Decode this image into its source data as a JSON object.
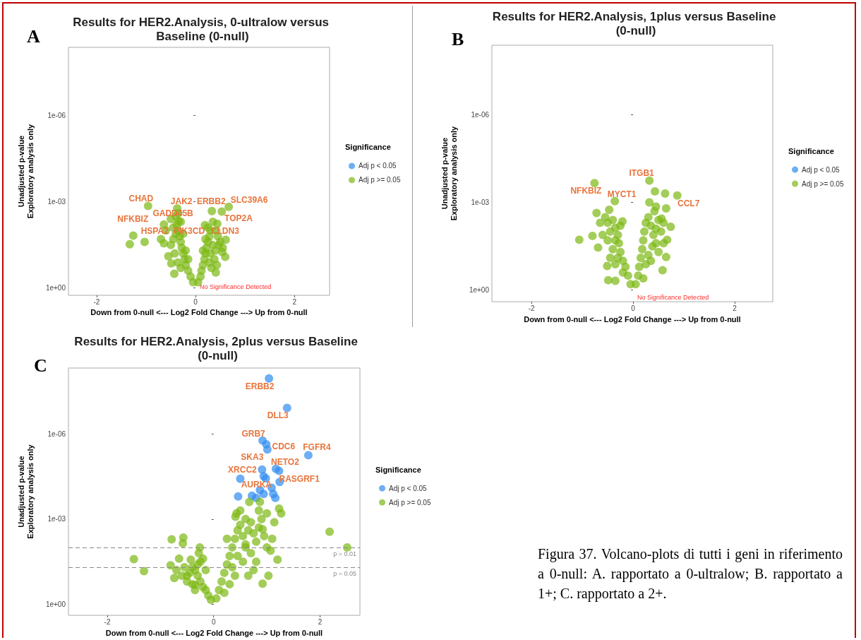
{
  "chart_data": [
    {
      "type": "scatter",
      "title": "Results for HER2.Analysis, 0-ultralow versus Baseline (0-null)",
      "xlabel": "Down from 0-null <--- Log2 Fold Change ---> Up from 0-null",
      "ylabel": "Unadjusted p-value\nExploratory analysis only",
      "legend_title": "Significance",
      "legend": "right",
      "marker": "circle",
      "grid": false,
      "log": "y",
      "xlim": [
        -2.57,
        2.71
      ],
      "xticks": [
        -2,
        0,
        2
      ],
      "ylim": [
        1.8,
        4.2e-09
      ],
      "yticks": [
        {
          "value": 1,
          "label": "1e+00"
        },
        {
          "value": 0.001,
          "label": "1e-03"
        },
        {
          "value": 1e-06,
          "label": "1e-06"
        }
      ],
      "series": [
        {
          "name": "Adj p < 0.05",
          "color": "#2f8cf0"
        },
        {
          "name": "Adj p >= 0.05",
          "color": "#7cb813",
          "x": [
            -0.96,
            -0.37,
            -0.34,
            0.33,
            0.53,
            0.67,
            0.44,
            0.19,
            0.61,
            -1.26,
            -1.33,
            -1.03,
            -0.64,
            -0.64,
            -0.49,
            -0.43,
            0.47,
            0.54,
            0.6,
            0.43,
            0.41,
            -0.05,
            -0.1,
            -0.15,
            -0.2,
            -0.22,
            -0.25,
            -0.28,
            -0.3,
            -0.32,
            -0.35,
            -0.38,
            -0.3,
            -0.4,
            -0.45,
            -0.5,
            -0.42,
            -0.36,
            -0.3,
            -0.55,
            -0.6,
            -0.5,
            -0.4,
            -0.35,
            -0.7,
            -0.2,
            -0.15,
            -0.25,
            -0.45,
            0.05,
            0.1,
            0.12,
            0.15,
            0.18,
            0.2,
            0.22,
            0.25,
            0.28,
            0.3,
            0.25,
            0.35,
            0.4,
            0.38,
            0.32,
            0.45,
            0.42,
            0.3,
            0.5,
            0.15,
            0.35,
            0.2,
            0.28,
            0.55
          ],
          "values": [
            0.0014,
            0.0017,
            0.0047,
            0.0021,
            0.0022,
            0.0015,
            0.0058,
            0.0065,
            0.021,
            0.015,
            0.03,
            0.025,
            0.0062,
            0.028,
            0.14,
            0.32,
            0.032,
            0.056,
            0.083,
            0.16,
            0.29,
            0.63,
            0.4,
            0.25,
            0.16,
            0.1,
            0.063,
            0.04,
            0.025,
            0.016,
            0.01,
            0.0063,
            0.005,
            0.013,
            0.02,
            0.032,
            0.063,
            0.13,
            0.2,
            0.079,
            0.01,
            0.004,
            0.0032,
            0.0025,
            0.02,
            0.05,
            0.1,
            0.013,
            0.0079,
            0.63,
            0.4,
            0.25,
            0.16,
            0.1,
            0.063,
            0.04,
            0.025,
            0.016,
            0.01,
            0.0079,
            0.032,
            0.05,
            0.1,
            0.2,
            0.016,
            0.01,
            0.063,
            0.025,
            0.05,
            0.005,
            0.02,
            0.13,
            0.04
          ]
        }
      ],
      "annotations": [
        "A",
        "No Significance Detected",
        {
          "text": "CHAD",
          "x": -0.96,
          "y": 0.0014
        },
        {
          "text": "JAK2",
          "x": -0.37,
          "y": 0.0017
        },
        {
          "text": "ERBB2",
          "x": 0.33,
          "y": 0.0021
        },
        {
          "text": "SLC39A6",
          "x": 0.67,
          "y": 0.0015
        },
        {
          "text": "GADD45B",
          "x": -0.4,
          "y": 0.0032
        },
        {
          "text": "NFKBIZ",
          "x": -0.64,
          "y": 0.0062
        },
        {
          "text": "TOP2A",
          "x": 0.44,
          "y": 0.0058
        },
        {
          "text": "HSPA2",
          "x": -0.64,
          "y": 0.028
        },
        {
          "text": "PIK3CD",
          "x": -0.3,
          "y": 0.025
        },
        {
          "text": "CLDN3",
          "x": 0.61,
          "y": 0.021
        }
      ]
    },
    {
      "type": "scatter",
      "title": "Results for HER2.Analysis, 1plus versus Baseline (0-null)",
      "xlabel": "Down from 0-null <--- Log2 Fold Change ---> Up from 0-null",
      "ylabel": "Unadjusted p-value\nExploratory analysis only",
      "legend_title": "Significance",
      "legend": "right",
      "marker": "circle",
      "grid": false,
      "log": "y",
      "xlim": [
        -2.78,
        2.75
      ],
      "xticks": [
        -2,
        0,
        2
      ],
      "ylim": [
        2.5,
        4.2e-09
      ],
      "yticks": [
        {
          "value": 1,
          "label": "1e+00"
        },
        {
          "value": 0.001,
          "label": "1e-03"
        },
        {
          "value": 1e-06,
          "label": "1e-06"
        }
      ],
      "series": [
        {
          "name": "Adj p < 0.05",
          "color": "#2f8cf0"
        },
        {
          "name": "Adj p >= 0.05",
          "color": "#7cb813",
          "x": [
            -0.76,
            0.32,
            -0.36,
            0.87,
            0.43,
            0.63,
            0.32,
            0.65,
            0.45,
            -0.72,
            -0.47,
            -0.21,
            -1.06,
            -0.8,
            -0.69,
            -0.35,
            0.74,
            0.67,
            0.65,
            0.58,
            -0.49,
            -0.35,
            -0.51,
            0.56,
            -0.05,
            -0.1,
            -0.15,
            -0.2,
            -0.25,
            -0.28,
            -0.3,
            -0.35,
            -0.4,
            -0.3,
            -0.45,
            -0.5,
            -0.55,
            -0.4,
            -0.6,
            -0.25,
            -0.35,
            -0.45,
            -0.2,
            -0.65,
            -0.5,
            0.05,
            0.1,
            0.12,
            0.15,
            0.18,
            0.2,
            0.22,
            0.25,
            0.3,
            0.35,
            0.4,
            0.45,
            0.5,
            0.38,
            0.3,
            0.45,
            0.25,
            0.55,
            0.6,
            0.42,
            0.35,
            0.5,
            0.2,
            0.6
          ],
          "values": [
            0.00022,
            0.00018,
            0.00091,
            0.00058,
            0.00042,
            0.0005,
            0.001,
            0.0016,
            0.0014,
            0.0023,
            0.0018,
            0.0045,
            0.019,
            0.014,
            0.035,
            0.0074,
            0.0068,
            0.019,
            0.074,
            0.21,
            0.46,
            0.48,
            0.15,
            0.0036,
            0.63,
            0.32,
            0.16,
            0.1,
            0.05,
            0.025,
            0.013,
            0.02,
            0.04,
            0.079,
            0.01,
            0.005,
            0.0032,
            0.004,
            0.013,
            0.0063,
            0.13,
            0.079,
            0.25,
            0.005,
            0.02,
            0.63,
            0.32,
            0.16,
            0.079,
            0.04,
            0.02,
            0.01,
            0.005,
            0.0032,
            0.0063,
            0.013,
            0.0079,
            0.004,
            0.032,
            0.063,
            0.025,
            0.13,
            0.01,
            0.005,
            0.002,
            0.1,
            0.05,
            0.4,
            0.025
          ]
        }
      ],
      "annotations": [
        "B",
        "No Significance Detected",
        {
          "text": "ITGB1",
          "x": 0.32,
          "y": 0.00018
        },
        {
          "text": "NFKBIZ",
          "x": -0.76,
          "y": 0.00022
        },
        {
          "text": "MYCT1",
          "x": -0.36,
          "y": 0.00091
        },
        {
          "text": "CCL7",
          "x": 0.87,
          "y": 0.00058
        }
      ]
    },
    {
      "type": "scatter",
      "title": "Results for HER2.Analysis, 2plus versus Baseline (0-null)",
      "xlabel": "Down from 0-null <--- Log2 Fold Change ---> Up from 0-null",
      "ylabel": "Unadjusted p-value\nExploratory analysis only",
      "legend_title": "Significance",
      "legend": "right",
      "marker": "circle",
      "grid": false,
      "log": "y",
      "xlim": [
        -2.73,
        2.75
      ],
      "xticks": [
        -2,
        0,
        2
      ],
      "ylim": [
        2.5,
        4.7e-09
      ],
      "yticks": [
        {
          "value": 1,
          "label": "1e+00"
        },
        {
          "value": 0.001,
          "label": "1e-03"
        },
        {
          "value": 1e-06,
          "label": "1e-06"
        }
      ],
      "series": [
        {
          "name": "Adj p < 0.05",
          "color": "#2f8cf0",
          "x": [
            1.04,
            1.38,
            0.92,
            0.99,
            1.01,
            1.78,
            0.91,
            1.17,
            1.23,
            0.94,
            0.98,
            0.5,
            1.24,
            1.09,
            0.94,
            1.12,
            0.72,
            0.46,
            0.8,
            1.16,
            0.87
          ],
          "values": [
            1.1e-08,
            1.2e-07,
            1.7e-06,
            2.3e-06,
            3.5e-06,
            5.6e-06,
            1.8e-05,
            1.7e-05,
            2e-05,
            3.1e-05,
            3.7e-05,
            3.8e-05,
            4.9e-05,
            7.9e-05,
            0.00013,
            0.00013,
            0.00015,
            0.00016,
            0.00018,
            0.00018,
            9.5e-05
          ]
        },
        {
          "name": "Adj p >= 0.05",
          "color": "#7cb813",
          "x": [
            2.18,
            2.51,
            -1.5,
            -1.31,
            -0.79,
            -0.57,
            -0.58,
            -0.26,
            -0.28,
            1.2,
            1.27,
            1.23,
            1.14,
            0.67,
            0.87,
            0.43,
            0.41,
            0.92,
            1.03,
            1.07,
            0.92,
            -0.81,
            -0.74,
            -0.65,
            -0.43,
            -0.5,
            -0.35,
            -0.05,
            -0.1,
            -0.15,
            -0.2,
            -0.25,
            -0.3,
            -0.35,
            -0.4,
            -0.45,
            -0.55,
            -0.6,
            -0.7,
            -0.5,
            -0.4,
            -0.3,
            -0.2,
            -0.15,
            -0.25,
            -0.35,
            0.05,
            0.1,
            0.15,
            0.2,
            0.25,
            0.3,
            0.35,
            0.4,
            0.45,
            0.5,
            0.55,
            0.6,
            0.65,
            0.7,
            0.75,
            0.8,
            0.85,
            0.9,
            0.95,
            1.0,
            0.6,
            0.5,
            0.45,
            0.35,
            0.55,
            0.7,
            0.75,
            0.65,
            0.8,
            0.4,
            0.3,
            0.25,
            0.85,
            1.1,
            1.0,
            0.6,
            0.2
          ],
          "values": [
            0.0028,
            0.01,
            0.026,
            0.069,
            0.0052,
            0.0045,
            0.0072,
            0.01,
            0.016,
            0.027,
            0.00063,
            0.00043,
            0.0013,
            0.00025,
            0.00025,
            0.00063,
            0.00083,
            0.19,
            0.1,
            0.013,
            0.0023,
            0.043,
            0.12,
            0.025,
            0.027,
            0.1,
            0.21,
            0.71,
            0.5,
            0.32,
            0.25,
            0.16,
            0.1,
            0.063,
            0.05,
            0.079,
            0.05,
            0.1,
            0.063,
            0.16,
            0.2,
            0.04,
            0.025,
            0.063,
            0.032,
            0.32,
            0.63,
            0.32,
            0.16,
            0.079,
            0.04,
            0.02,
            0.01,
            0.005,
            0.0025,
            0.0016,
            0.004,
            0.0079,
            0.0025,
            0.0013,
            0.0032,
            0.0063,
            0.002,
            0.001,
            0.004,
            0.01,
            0.001,
            0.0005,
            0.02,
            0.05,
            0.032,
            0.016,
            0.063,
            0.1,
            0.032,
            0.1,
            0.2,
            0.005,
            0.0005,
            0.005,
            0.00063,
            0.01,
            0.4
          ]
        }
      ],
      "ref_lines": [
        {
          "axis": "y",
          "value": 0.01,
          "label": "p = 0.01",
          "color": "#888888",
          "line_style": "dashed"
        },
        {
          "axis": "y",
          "value": 0.05,
          "label": "p = 0.05",
          "color": "#888888",
          "line_style": "dashed"
        }
      ],
      "annotations": [
        "C",
        {
          "text": "ERBB2",
          "x": 1.04,
          "y": 1.1e-08
        },
        {
          "text": "DLL3",
          "x": 1.38,
          "y": 1.2e-07
        },
        {
          "text": "GRB7",
          "x": 0.92,
          "y": 1.7e-06
        },
        {
          "text": "CDC6",
          "x": 1.01,
          "y": 3.5e-06
        },
        {
          "text": "FGFR4",
          "x": 1.78,
          "y": 5.6e-06
        },
        {
          "text": "SKA3",
          "x": 0.91,
          "y": 1.8e-05
        },
        {
          "text": "NETO2",
          "x": 1.17,
          "y": 1.7e-05
        },
        {
          "text": "XRCC2",
          "x": 0.5,
          "y": 3.8e-05
        },
        {
          "text": "RASGRF1",
          "x": 1.24,
          "y": 4.9e-05
        },
        {
          "text": "AURKA",
          "x": 0.87,
          "y": 9.5e-05
        }
      ]
    },
    {
      "type": "other",
      "annotations": [
        "Figura 37. Volcano-plots di tutti i geni in riferimento a 0-null: A. rapportato a 0-ultralow; B. rapportato a 1+; C. rapportato a 2+."
      ]
    }
  ]
}
